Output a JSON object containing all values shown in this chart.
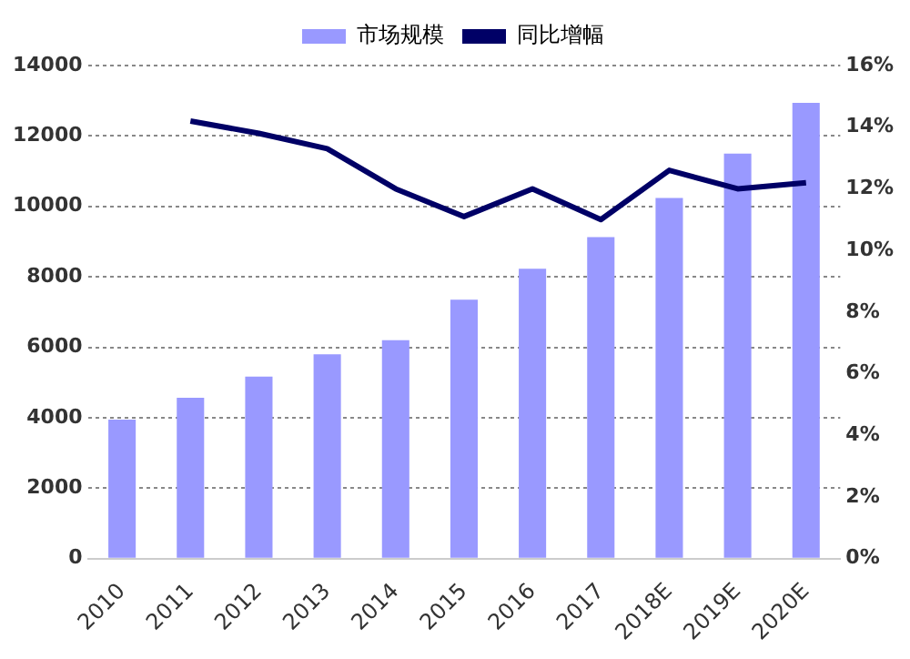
{
  "chart_data": {
    "type": "bar",
    "categories": [
      "2010",
      "2011",
      "2012",
      "2013",
      "2014",
      "2015",
      "2016",
      "2017",
      "2018E",
      "2019E",
      "2020E"
    ],
    "series": [
      {
        "name": "市场规模",
        "color": "#9999ff",
        "values": [
          3950,
          4570,
          5170,
          5800,
          6200,
          7350,
          8230,
          9130,
          10240,
          11500,
          12940
        ]
      },
      {
        "name": "同比增幅",
        "type": "line",
        "axis": "y2",
        "color": "#000066",
        "marker": "none",
        "values": [
          null,
          14.2,
          13.8,
          13.3,
          12.0,
          11.1,
          12.0,
          11.0,
          12.6,
          12.0,
          12.2
        ]
      }
    ],
    "ylim": [
      0,
      14000
    ],
    "yticks": [
      0,
      2000,
      4000,
      6000,
      8000,
      10000,
      12000,
      14000
    ],
    "y2lim": [
      0,
      16
    ],
    "y2ticks": [
      {
        "value": 0,
        "label": "0%"
      },
      {
        "value": 2,
        "label": "2%"
      },
      {
        "value": 4,
        "label": "4%"
      },
      {
        "value": 6,
        "label": "6%"
      },
      {
        "value": 8,
        "label": "8%"
      },
      {
        "value": 10,
        "label": "10%"
      },
      {
        "value": 12,
        "label": "12%"
      },
      {
        "value": 14,
        "label": "14%"
      },
      {
        "value": 16,
        "label": "16%"
      }
    ],
    "grid": "y",
    "legend": "top"
  }
}
